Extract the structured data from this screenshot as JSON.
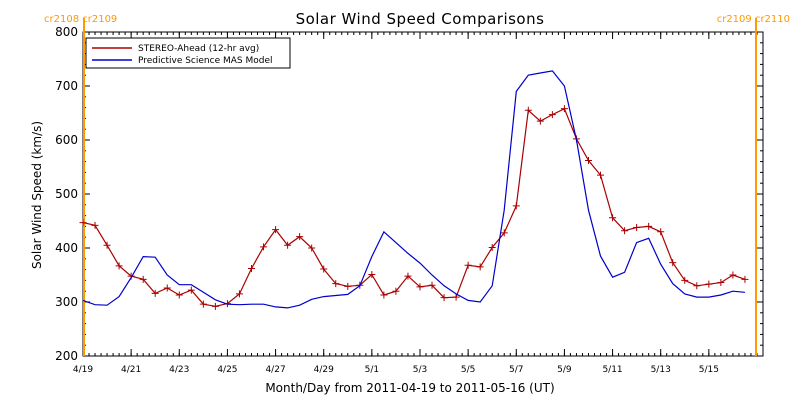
{
  "chart_data": {
    "type": "line",
    "title": "Solar Wind Speed Comparisons",
    "xlabel": "Month/Day from 2011-04-19 to 2011-05-16 (UT)",
    "ylabel": "Solar Wind Speed (km/s)",
    "ylim": [
      200,
      800
    ],
    "xlim": [
      "2011-04-19",
      "2011-05-17 06:00"
    ],
    "y_ticks": [
      200,
      300,
      400,
      500,
      600,
      700,
      800
    ],
    "x_ticks": [
      {
        "date": "2011-04-19",
        "label": "4/19"
      },
      {
        "date": "2011-04-21",
        "label": "4/21"
      },
      {
        "date": "2011-04-23",
        "label": "4/23"
      },
      {
        "date": "2011-04-25",
        "label": "4/25"
      },
      {
        "date": "2011-04-27",
        "label": "4/27"
      },
      {
        "date": "2011-04-29",
        "label": "4/29"
      },
      {
        "date": "2011-05-01",
        "label": "5/1"
      },
      {
        "date": "2011-05-03",
        "label": "5/3"
      },
      {
        "date": "2011-05-05",
        "label": "5/5"
      },
      {
        "date": "2011-05-07",
        "label": "5/7"
      },
      {
        "date": "2011-05-09",
        "label": "5/9"
      },
      {
        "date": "2011-05-11",
        "label": "5/11"
      },
      {
        "date": "2011-05-13",
        "label": "5/13"
      },
      {
        "date": "2011-05-15",
        "label": "5/15"
      }
    ],
    "legend_position": "top-left",
    "grid": false,
    "carrington_markers": [
      {
        "date": "2011-04-19",
        "label": "cr2108 cr2109",
        "align": "left"
      },
      {
        "date": "2011-05-17",
        "label": "cr2109 cr2110",
        "align": "right"
      }
    ],
    "colors": {
      "stereo": "#aa0000",
      "mas": "#0000cc",
      "marker": "#ff9900"
    },
    "series": [
      {
        "name": "STEREO-Ahead (12-hr avg)",
        "color": "#aa0000",
        "marker": "plus",
        "points": [
          [
            "2011-04-19 00:00",
            447
          ],
          [
            "2011-04-19 12:00",
            442
          ],
          [
            "2011-04-20 00:00",
            405
          ],
          [
            "2011-04-20 12:00",
            367
          ],
          [
            "2011-04-21 00:00",
            348
          ],
          [
            "2011-04-21 12:00",
            342
          ],
          [
            "2011-04-22 00:00",
            316
          ],
          [
            "2011-04-22 12:00",
            326
          ],
          [
            "2011-04-23 00:00",
            313
          ],
          [
            "2011-04-23 12:00",
            322
          ],
          [
            "2011-04-24 00:00",
            296
          ],
          [
            "2011-04-24 12:00",
            292
          ],
          [
            "2011-04-25 00:00",
            297
          ],
          [
            "2011-04-25 12:00",
            315
          ],
          [
            "2011-04-26 00:00",
            362
          ],
          [
            "2011-04-26 12:00",
            402
          ],
          [
            "2011-04-27 00:00",
            434
          ],
          [
            "2011-04-27 12:00",
            405
          ],
          [
            "2011-04-28 00:00",
            421
          ],
          [
            "2011-04-28 12:00",
            400
          ],
          [
            "2011-04-29 00:00",
            361
          ],
          [
            "2011-04-29 12:00",
            334
          ],
          [
            "2011-04-30 00:00",
            329
          ],
          [
            "2011-04-30 12:00",
            331
          ],
          [
            "2011-05-01 00:00",
            351
          ],
          [
            "2011-05-01 12:00",
            313
          ],
          [
            "2011-05-02 00:00",
            320
          ],
          [
            "2011-05-02 12:00",
            348
          ],
          [
            "2011-05-03 00:00",
            328
          ],
          [
            "2011-05-03 12:00",
            331
          ],
          [
            "2011-05-04 00:00",
            308
          ],
          [
            "2011-05-04 12:00",
            309
          ],
          [
            "2011-05-05 00:00",
            368
          ],
          [
            "2011-05-05 12:00",
            365
          ],
          [
            "2011-05-06 00:00",
            401
          ],
          [
            "2011-05-06 12:00",
            428
          ],
          [
            "2011-05-07 00:00",
            478
          ],
          [
            "2011-05-07 12:00",
            655
          ],
          [
            "2011-05-08 00:00",
            635
          ],
          [
            "2011-05-08 12:00",
            647
          ],
          [
            "2011-05-09 00:00",
            658
          ],
          [
            "2011-05-09 12:00",
            602
          ],
          [
            "2011-05-10 00:00",
            562
          ],
          [
            "2011-05-10 12:00",
            535
          ],
          [
            "2011-05-11 00:00",
            456
          ],
          [
            "2011-05-11 12:00",
            432
          ],
          [
            "2011-05-12 00:00",
            438
          ],
          [
            "2011-05-12 12:00",
            440
          ],
          [
            "2011-05-13 00:00",
            430
          ],
          [
            "2011-05-13 12:00",
            373
          ],
          [
            "2011-05-14 00:00",
            340
          ],
          [
            "2011-05-14 12:00",
            330
          ],
          [
            "2011-05-15 00:00",
            333
          ],
          [
            "2011-05-15 12:00",
            336
          ],
          [
            "2011-05-16 00:00",
            350
          ],
          [
            "2011-05-16 12:00",
            342
          ]
        ]
      },
      {
        "name": "Predictive Science MAS Model",
        "color": "#0000cc",
        "marker": "none",
        "points": [
          [
            "2011-04-19 00:00",
            303
          ],
          [
            "2011-04-19 12:00",
            295
          ],
          [
            "2011-04-20 00:00",
            294
          ],
          [
            "2011-04-20 12:00",
            310
          ],
          [
            "2011-04-21 00:00",
            345
          ],
          [
            "2011-04-21 12:00",
            384
          ],
          [
            "2011-04-22 00:00",
            383
          ],
          [
            "2011-04-22 12:00",
            350
          ],
          [
            "2011-04-23 00:00",
            332
          ],
          [
            "2011-04-23 12:00",
            332
          ],
          [
            "2011-04-24 00:00",
            318
          ],
          [
            "2011-04-24 12:00",
            304
          ],
          [
            "2011-04-25 00:00",
            296
          ],
          [
            "2011-04-25 12:00",
            295
          ],
          [
            "2011-04-26 00:00",
            296
          ],
          [
            "2011-04-26 12:00",
            296
          ],
          [
            "2011-04-27 00:00",
            291
          ],
          [
            "2011-04-27 12:00",
            289
          ],
          [
            "2011-04-28 00:00",
            294
          ],
          [
            "2011-04-28 12:00",
            305
          ],
          [
            "2011-04-29 00:00",
            310
          ],
          [
            "2011-04-29 12:00",
            312
          ],
          [
            "2011-04-30 00:00",
            314
          ],
          [
            "2011-04-30 12:00",
            330
          ],
          [
            "2011-05-01 00:00",
            384
          ],
          [
            "2011-05-01 12:00",
            430
          ],
          [
            "2011-05-02 00:00",
            410
          ],
          [
            "2011-05-02 12:00",
            390
          ],
          [
            "2011-05-03 00:00",
            372
          ],
          [
            "2011-05-03 12:00",
            350
          ],
          [
            "2011-05-04 00:00",
            330
          ],
          [
            "2011-05-04 12:00",
            315
          ],
          [
            "2011-05-05 00:00",
            303
          ],
          [
            "2011-05-05 12:00",
            300
          ],
          [
            "2011-05-06 00:00",
            330
          ],
          [
            "2011-05-06 12:00",
            470
          ],
          [
            "2011-05-07 00:00",
            690
          ],
          [
            "2011-05-07 12:00",
            720
          ],
          [
            "2011-05-08 00:00",
            724
          ],
          [
            "2011-05-08 12:00",
            728
          ],
          [
            "2011-05-09 00:00",
            700
          ],
          [
            "2011-05-09 12:00",
            600
          ],
          [
            "2011-05-10 00:00",
            470
          ],
          [
            "2011-05-10 12:00",
            385
          ],
          [
            "2011-05-11 00:00",
            346
          ],
          [
            "2011-05-11 12:00",
            355
          ],
          [
            "2011-05-12 00:00",
            410
          ],
          [
            "2011-05-12 12:00",
            418
          ],
          [
            "2011-05-13 00:00",
            370
          ],
          [
            "2011-05-13 12:00",
            334
          ],
          [
            "2011-05-14 00:00",
            315
          ],
          [
            "2011-05-14 12:00",
            309
          ],
          [
            "2011-05-15 00:00",
            309
          ],
          [
            "2011-05-15 12:00",
            313
          ],
          [
            "2011-05-16 00:00",
            320
          ],
          [
            "2011-05-16 12:00",
            318
          ]
        ]
      }
    ]
  }
}
